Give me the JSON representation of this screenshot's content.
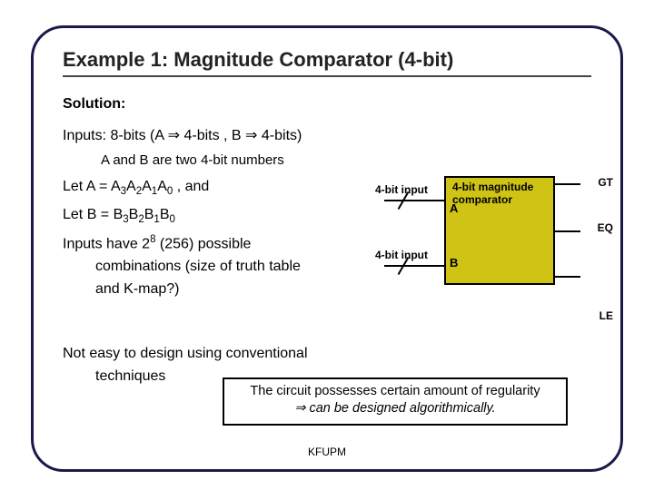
{
  "title": "Example 1: Magnitude Comparator (4-bit)",
  "solution_label": "Solution:",
  "inputs_line": "Inputs: 8-bits (A ⇒ 4-bits , B ⇒ 4-bits)",
  "ab_line": "A and B are two 4-bit numbers",
  "letA_prefix": "Let A = A",
  "letA_suffix": " , and",
  "letB_prefix": "Let B = B",
  "combo_prefix": "Inputs have 2",
  "combo_exp": "8",
  "combo_after": " (256) possible",
  "combo_line2a": "combinations (size of truth table",
  "combo_line2b": "and K-map?)",
  "not_easy_1": "Not easy to design using conventional",
  "not_easy_2": "techniques",
  "callout_1": "The circuit possesses certain amount of regularity",
  "callout_2": "⇒ can be designed algorithmically.",
  "footer": "KFUPM",
  "diagram": {
    "in_label": "4-bit input",
    "block_line1": "4-bit magnitude",
    "block_line2": "comparator",
    "A": "A",
    "B": "B",
    "GT": "GT",
    "EQ": "EQ",
    "LE": "LE",
    "block_bg": "#cfc415",
    "border_color": "#000000"
  },
  "subscripts": {
    "s3": "3",
    "s2": "2",
    "s1": "1",
    "s0": "0"
  },
  "colors": {
    "frame": "#1a1a4a",
    "title_underline": "#444444"
  }
}
